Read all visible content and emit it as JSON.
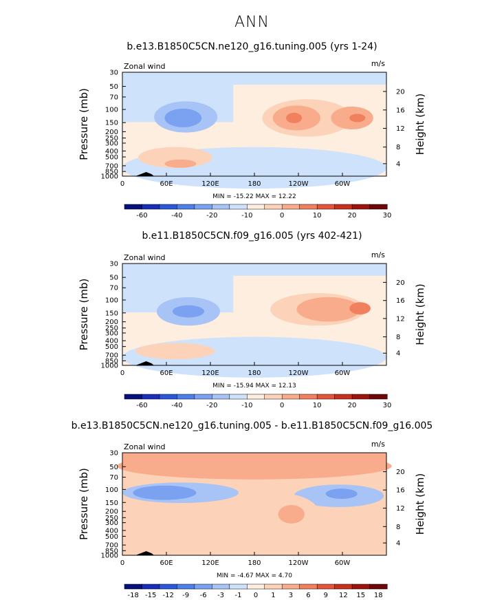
{
  "main_title": "ANN",
  "colors": {
    "palette": [
      "#08107a",
      "#1a2fb8",
      "#2c58d8",
      "#4d7fe8",
      "#7aa2f0",
      "#a8c4f6",
      "#cfe2fb",
      "#fdeee0",
      "#fcd2b8",
      "#f8ac8c",
      "#f0805e",
      "#e2553a",
      "#c8301e",
      "#9c140c",
      "#6e0707"
    ]
  },
  "chart_data": [
    {
      "type": "heatmap",
      "title": "b.e13.B1850C5CN.ne120_g16.tuning.005 (yrs 1-24)",
      "top_left_label": "Zonal wind",
      "units": "m/s",
      "ylabel": "Pressure (mb)",
      "ylabel_right": "Height (km)",
      "x_tick_labels": [
        "0",
        "60E",
        "120E",
        "180",
        "120W",
        "60W"
      ],
      "y_tick_labels": [
        "30",
        "50",
        "70",
        "100",
        "150",
        "200",
        "250",
        "300",
        "400",
        "500",
        "700",
        "850",
        "1000"
      ],
      "height_tick_labels": [
        "20",
        "16",
        "12",
        "8",
        "4"
      ],
      "min_max_text": "MIN = -15.22   MAX =  12.22",
      "colorbar_labels": [
        "-60",
        "-40",
        "-20",
        "-10",
        "0",
        "10",
        "20",
        "30"
      ]
    },
    {
      "type": "heatmap",
      "title": "b.e11.B1850C5CN.f09_g16.005 (yrs 402-421)",
      "top_left_label": "Zonal wind",
      "units": "m/s",
      "ylabel": "Pressure (mb)",
      "ylabel_right": "Height (km)",
      "x_tick_labels": [
        "0",
        "60E",
        "120E",
        "180",
        "120W",
        "60W"
      ],
      "y_tick_labels": [
        "30",
        "50",
        "70",
        "100",
        "150",
        "200",
        "250",
        "300",
        "400",
        "500",
        "700",
        "850",
        "1000"
      ],
      "height_tick_labels": [
        "20",
        "16",
        "12",
        "8",
        "4"
      ],
      "min_max_text": "MIN = -15.94   MAX =  12.13",
      "colorbar_labels": [
        "-60",
        "-40",
        "-20",
        "-10",
        "0",
        "10",
        "20",
        "30"
      ]
    },
    {
      "type": "heatmap",
      "title": "b.e13.B1850C5CN.ne120_g16.tuning.005 - b.e11.B1850C5CN.f09_g16.005",
      "top_left_label": "Zonal wind",
      "units": "m/s",
      "ylabel": "Pressure (mb)",
      "ylabel_right": "Height (km)",
      "x_tick_labels": [
        "0",
        "60E",
        "120E",
        "180",
        "120W",
        "60W"
      ],
      "y_tick_labels": [
        "30",
        "50",
        "70",
        "100",
        "150",
        "200",
        "250",
        "300",
        "400",
        "500",
        "700",
        "850",
        "1000"
      ],
      "height_tick_labels": [
        "20",
        "16",
        "12",
        "8",
        "4"
      ],
      "min_max_text": "MIN =  -4.67   MAX =   4.70",
      "colorbar_labels": [
        "-18",
        "-15",
        "-12",
        "-9",
        "-6",
        "-3",
        "-1",
        "0",
        "1",
        "3",
        "6",
        "9",
        "12",
        "15",
        "18"
      ]
    }
  ]
}
